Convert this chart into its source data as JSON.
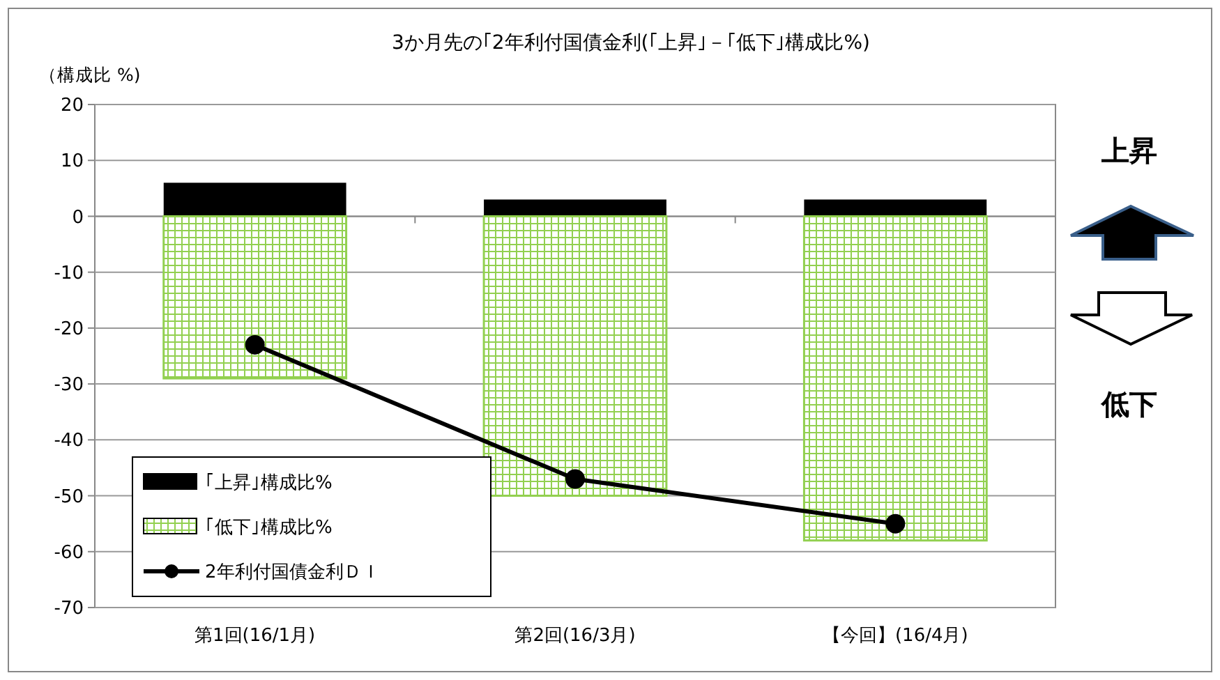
{
  "chart_data": {
    "type": "bar",
    "title": "3か月先の｢2年利付国債金利(｢上昇｣－｢低下｣構成比%)",
    "ylabel": "（構成比 %)",
    "categories": [
      "第1回(16/1月)",
      "第2回(16/3月)",
      "【今回】(16/4月)"
    ],
    "stacked": true,
    "series": [
      {
        "name": "｢上昇｣構成比%",
        "color": "#000000",
        "values": [
          6,
          3,
          3
        ]
      },
      {
        "name": "｢低下｣構成比%",
        "color": "#92d050",
        "values": [
          -29,
          -50,
          -58
        ]
      },
      {
        "name": "2年利付国債金利ＤＩ",
        "type": "line",
        "color": "#000000",
        "values": [
          -23,
          -47,
          -55
        ]
      }
    ],
    "ylim": [
      -70,
      20
    ],
    "yticks": [
      -70,
      -60,
      -50,
      -40,
      -30,
      -20,
      -10,
      0,
      10,
      20
    ],
    "grid": "y",
    "legend": "bottom left",
    "marker": "circle",
    "line_style": "solid",
    "annotations": [
      "上昇",
      "低下"
    ]
  }
}
